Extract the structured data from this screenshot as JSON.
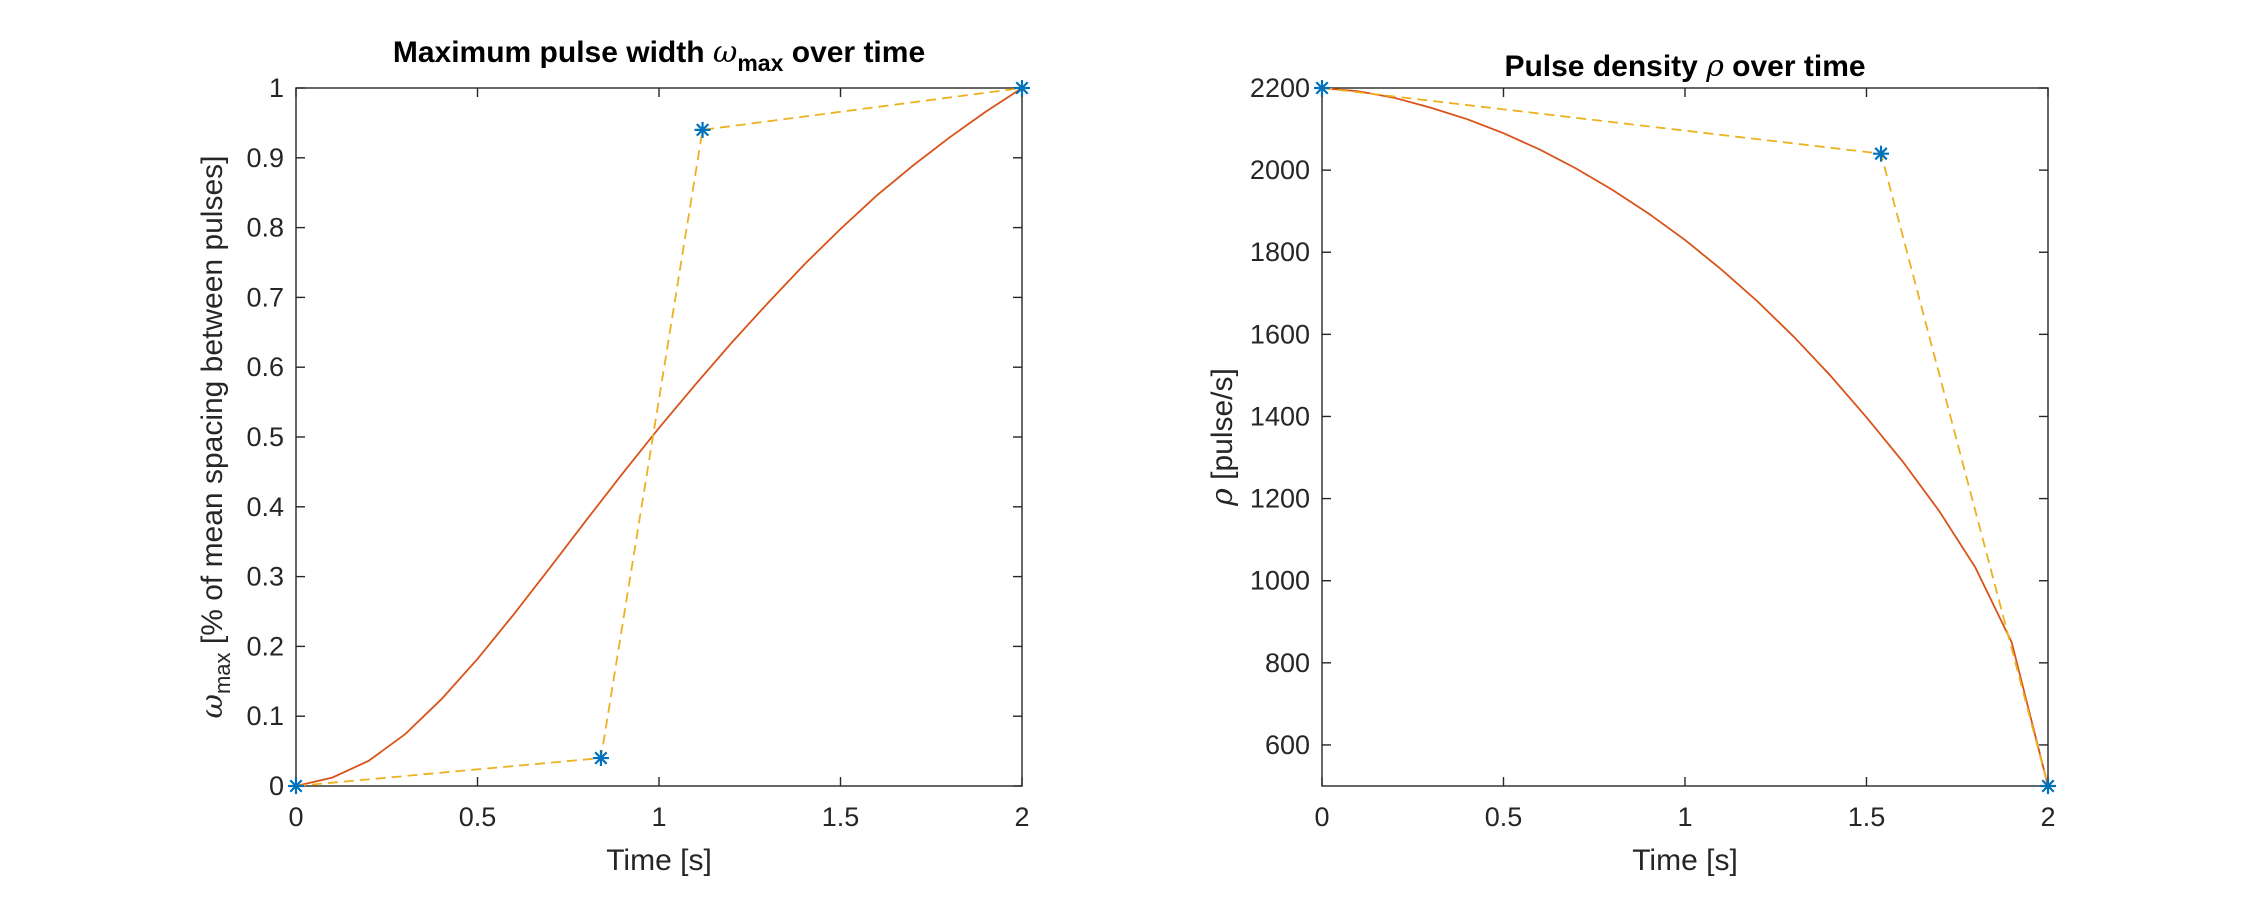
{
  "colors": {
    "curve": "#D95319",
    "control_polygon": "#EDB120",
    "control_points": "#0072BD",
    "axes": "#262626"
  },
  "chart_data": [
    {
      "type": "line",
      "title": {
        "prefix": "Maximum pulse width ",
        "symbol": "ω",
        "subscript": "max",
        "suffix": " over time"
      },
      "xlabel": "Time [s]",
      "ylabel": {
        "symbol": "ω",
        "subscript": "max",
        "text": " [% of mean spacing between pulses]"
      },
      "xlim": [
        0,
        2
      ],
      "ylim": [
        0,
        1
      ],
      "xticks": [
        0,
        0.5,
        1,
        1.5,
        2
      ],
      "xtick_labels": [
        "0",
        "0.5",
        "1",
        "1.5",
        "2"
      ],
      "yticks": [
        0,
        0.1,
        0.2,
        0.3,
        0.4,
        0.5,
        0.6,
        0.7,
        0.8,
        0.9,
        1
      ],
      "ytick_labels": [
        "0",
        "0.1",
        "0.2",
        "0.3",
        "0.4",
        "0.5",
        "0.6",
        "0.7",
        "0.8",
        "0.9",
        "1"
      ],
      "grid": false,
      "series": [
        {
          "role": "curve",
          "style": "solid",
          "x": [
            0,
            0.1,
            0.2,
            0.3,
            0.4,
            0.5,
            0.6,
            0.7,
            0.8,
            0.9,
            1.0,
            1.1,
            1.2,
            1.3,
            1.4,
            1.5,
            1.6,
            1.7,
            1.8,
            1.9,
            2.0
          ],
          "y": [
            0,
            0.012,
            0.036,
            0.074,
            0.124,
            0.182,
            0.246,
            0.313,
            0.381,
            0.448,
            0.513,
            0.575,
            0.635,
            0.692,
            0.747,
            0.798,
            0.846,
            0.889,
            0.929,
            0.966,
            1.0
          ]
        },
        {
          "role": "control_polygon",
          "style": "dashed",
          "marker": "asterisk",
          "x": [
            0,
            0.84,
            1.12,
            2.0
          ],
          "y": [
            0,
            0.04,
            0.94,
            1.0
          ]
        }
      ]
    },
    {
      "type": "line",
      "title": {
        "prefix": "Pulse density ",
        "symbol": "ρ",
        "subscript": "",
        "suffix": " over time"
      },
      "xlabel": "Time [s]",
      "ylabel": {
        "symbol": "ρ",
        "subscript": "",
        "text": " [pulse/s]"
      },
      "xlim": [
        0,
        2
      ],
      "ylim": [
        500,
        2200
      ],
      "xticks": [
        0,
        0.5,
        1,
        1.5,
        2
      ],
      "xtick_labels": [
        "0",
        "0.5",
        "1",
        "1.5",
        "2"
      ],
      "yticks": [
        600,
        800,
        1000,
        1200,
        1400,
        1600,
        1800,
        2000,
        2200
      ],
      "ytick_labels": [
        "600",
        "800",
        "1000",
        "1200",
        "1400",
        "1600",
        "1800",
        "2000",
        "2200"
      ],
      "grid": false,
      "series": [
        {
          "role": "curve",
          "style": "solid",
          "x": [
            0,
            0.1,
            0.2,
            0.3,
            0.4,
            0.5,
            0.6,
            0.7,
            0.8,
            0.9,
            1.0,
            1.1,
            1.2,
            1.3,
            1.4,
            1.5,
            1.6,
            1.7,
            1.8,
            1.9,
            2.0
          ],
          "y": [
            2200,
            2192,
            2176,
            2152,
            2124,
            2090,
            2050,
            2004,
            1952,
            1894,
            1830,
            1758,
            1680,
            1594,
            1500,
            1398,
            1290,
            1170,
            1032,
            850,
            500
          ]
        },
        {
          "role": "control_polygon",
          "style": "dashed",
          "marker": "asterisk",
          "x": [
            0,
            1.54,
            2.0
          ],
          "y": [
            2200,
            2040,
            500
          ]
        }
      ]
    }
  ]
}
